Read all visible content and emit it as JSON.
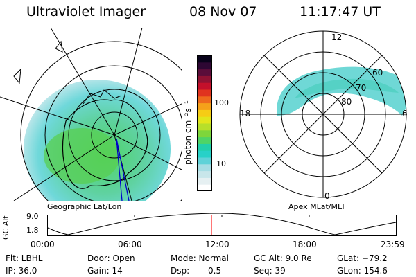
{
  "header": {
    "title": "Ultraviolet Imager",
    "date": "08 Nov 07",
    "time": "11:17:47 UT"
  },
  "left_panel": {
    "caption": "Geographic Lat/Lon"
  },
  "right_panel": {
    "caption": "Apex MLat/MLT",
    "mlt_labels": {
      "top": "12",
      "left": "18",
      "right": "6",
      "bottom": "0"
    },
    "lat_labels": [
      "60",
      "70",
      "80"
    ]
  },
  "colorbar": {
    "unit_label": "photon cm⁻²s⁻¹",
    "ticks": [
      "100",
      "10"
    ],
    "colors": [
      "#ffffff",
      "#e6f0f2",
      "#c8e6ea",
      "#a6dde4",
      "#5fd2d8",
      "#27d1c8",
      "#22cfaa",
      "#4fd466",
      "#7ed63b",
      "#b7df2a",
      "#e2e61c",
      "#f6cc15",
      "#f5a11a",
      "#ee6a1d",
      "#e0331f",
      "#c3102b",
      "#8f1233",
      "#5a0d3a",
      "#2d0733",
      "#08021a"
    ]
  },
  "altitude_plot": {
    "ylabel": "GC Alt",
    "ymax": "9.0",
    "ymin": "1.8",
    "xticks": [
      "00:00",
      "06:00",
      "12:00",
      "18:00",
      "23:59"
    ],
    "current_time_fraction": 0.47,
    "marker_color": "#ff0000"
  },
  "footer": {
    "flt": "Flt: LBHL",
    "ip": "IP: 36.0",
    "door": "Door: Open",
    "gain": "Gain: 14",
    "mode": "Mode: Normal",
    "dsp_label": "Dsp:",
    "dsp_value": "0.5",
    "gc_alt": "GC Alt: 9.0 Re",
    "seq": "Seq: 39",
    "glat": "GLat: −79.2",
    "glon": "GLon: 154.6"
  }
}
